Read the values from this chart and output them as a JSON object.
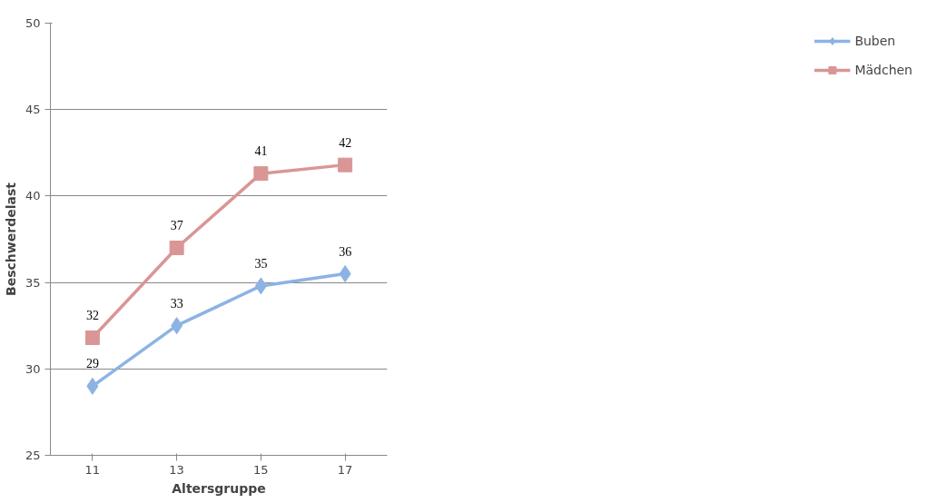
{
  "chart_data": {
    "type": "line",
    "xlabel": "Altersgruppe",
    "ylabel": "Beschwerdelast",
    "categories": [
      "11",
      "13",
      "15",
      "17"
    ],
    "series": [
      {
        "name": "Buben",
        "color": "#8cb3e3",
        "marker": "diamond",
        "values": [
          29.0,
          32.5,
          34.8,
          35.5
        ],
        "value_labels": [
          "29",
          "33",
          "35",
          "36"
        ]
      },
      {
        "name": "Mädchen",
        "color": "#d99694",
        "marker": "square",
        "values": [
          31.8,
          37.0,
          41.3,
          41.8
        ],
        "value_labels": [
          "32",
          "37",
          "41",
          "42"
        ]
      }
    ],
    "ylim": [
      25,
      50
    ],
    "yticks": [
      25,
      30,
      35,
      40,
      45,
      50
    ],
    "grid": "y",
    "legend": "right",
    "line_style": "solid"
  }
}
